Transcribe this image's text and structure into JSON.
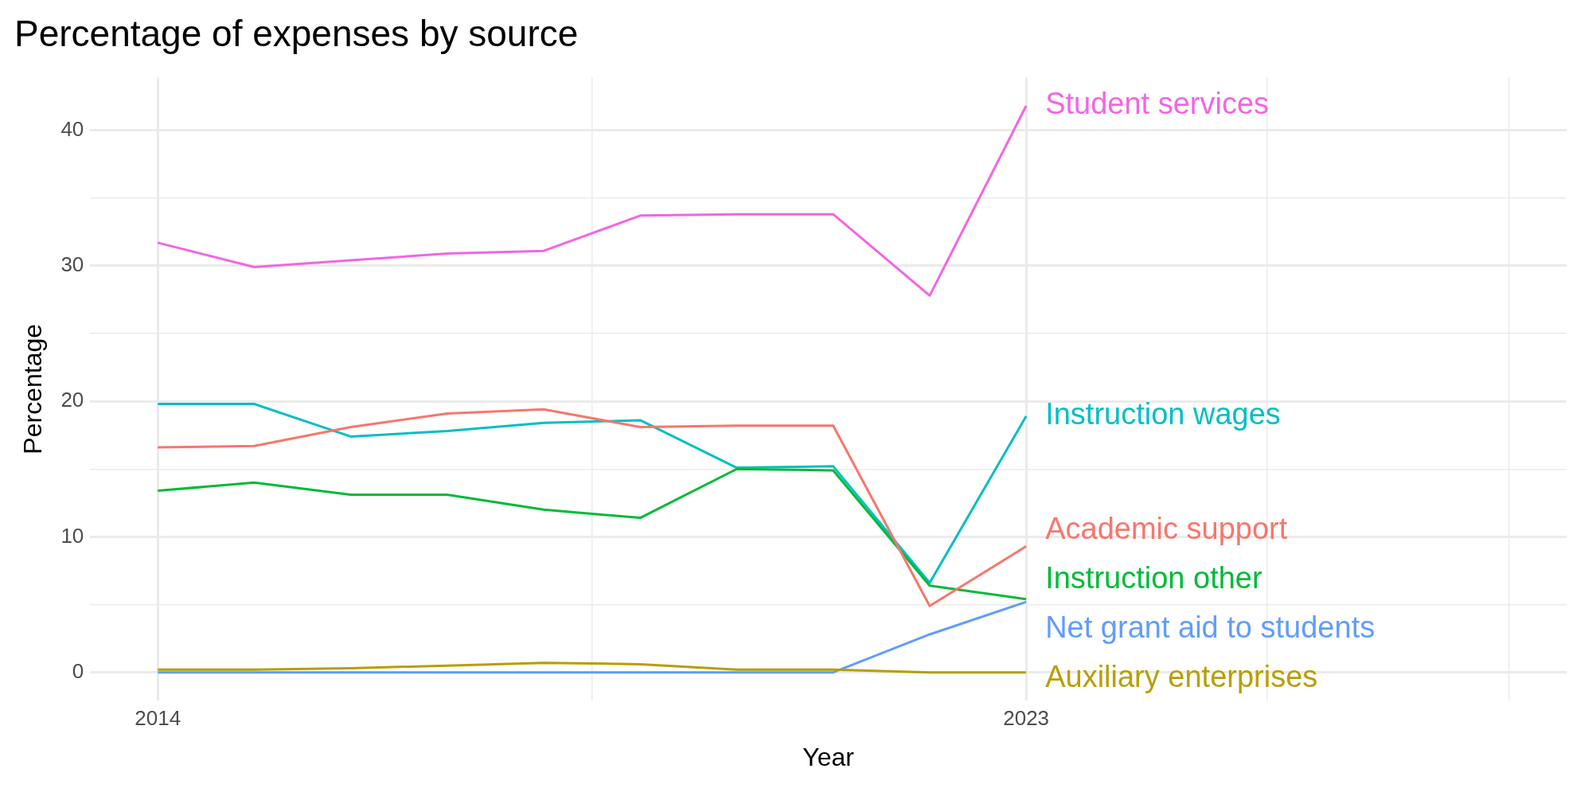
{
  "chart_data": {
    "type": "line",
    "title": "Percentage of expenses by source",
    "xlabel": "Year",
    "ylabel": "Percentage",
    "x": [
      2014,
      2015,
      2016,
      2017,
      2018,
      2019,
      2020,
      2021,
      2022,
      2023
    ],
    "xlim": [
      2013.3,
      2028.6
    ],
    "xticks": [
      2014,
      {
        "value": 2018.5,
        "label": null
      },
      2023,
      {
        "value": 2025.5,
        "label": null
      },
      {
        "value": 2028,
        "label": null
      }
    ],
    "ylim": [
      -2.1,
      43.9
    ],
    "yticks": [
      0,
      {
        "value": 5,
        "label": null
      },
      10,
      {
        "value": 15,
        "label": null
      },
      20,
      {
        "value": 25,
        "label": null
      },
      30,
      {
        "value": 35,
        "label": null
      },
      40
    ],
    "grid": true,
    "legend": false,
    "marker": "none",
    "line_style": "solid",
    "series": [
      {
        "name": "Academic support",
        "color": "#f8766d",
        "values": [
          16.6,
          16.7,
          18.1,
          19.1,
          19.4,
          18.1,
          18.2,
          18.2,
          4.9,
          9.3
        ]
      },
      {
        "name": "Auxiliary enterprises",
        "color": "#b79f00",
        "values": [
          0.2,
          0.2,
          0.3,
          0.5,
          0.7,
          0.6,
          0.2,
          0.2,
          0,
          0
        ]
      },
      {
        "name": "Instruction other",
        "color": "#00ba38",
        "values": [
          13.4,
          14.0,
          13.1,
          13.1,
          12.0,
          11.4,
          15.0,
          14.9,
          6.4,
          5.4
        ]
      },
      {
        "name": "Instruction wages",
        "color": "#00bfc4",
        "values": [
          19.8,
          19.8,
          17.4,
          17.8,
          18.4,
          18.6,
          15.1,
          15.2,
          6.6,
          18.9
        ]
      },
      {
        "name": "Net grant aid to students",
        "color": "#619cff",
        "values": [
          0,
          0,
          0,
          0,
          0,
          0,
          0,
          0,
          2.8,
          5.2
        ]
      },
      {
        "name": "Student services",
        "color": "#f564e3",
        "values": [
          31.7,
          29.9,
          30.4,
          30.9,
          31.1,
          33.7,
          33.8,
          33.8,
          27.8,
          41.8
        ]
      }
    ]
  }
}
